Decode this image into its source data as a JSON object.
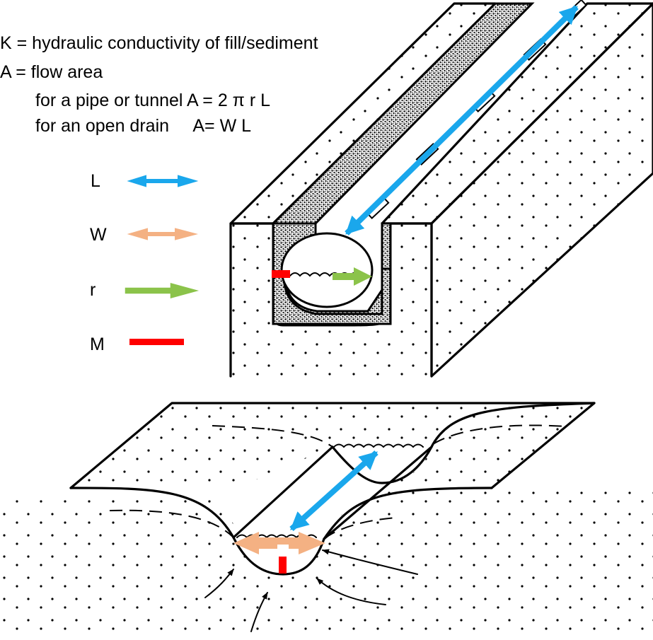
{
  "definitions": {
    "k_line": "K = hydraulic conductivity of fill/sediment",
    "a_line": "A = flow area",
    "pipe_line": "for a pipe or tunnel A = 2 π r L",
    "drain_line": "for an open drain     A= W L"
  },
  "legend": {
    "items": [
      {
        "key": "L",
        "color": "#1aa7ec",
        "style": "double-arrow"
      },
      {
        "key": "W",
        "color": "#f4b183",
        "style": "double-arrow"
      },
      {
        "key": "r",
        "color": "#8bc34a",
        "style": "arrow"
      },
      {
        "key": "M",
        "color": "#ff0000",
        "style": "bar"
      }
    ]
  },
  "colors": {
    "L": "#1aa7ec",
    "W": "#f4b183",
    "r": "#8bc34a",
    "M": "#ff0000",
    "outline": "#000000"
  },
  "icons": [
    "double-arrow-icon",
    "arrow-icon",
    "bar-icon"
  ]
}
